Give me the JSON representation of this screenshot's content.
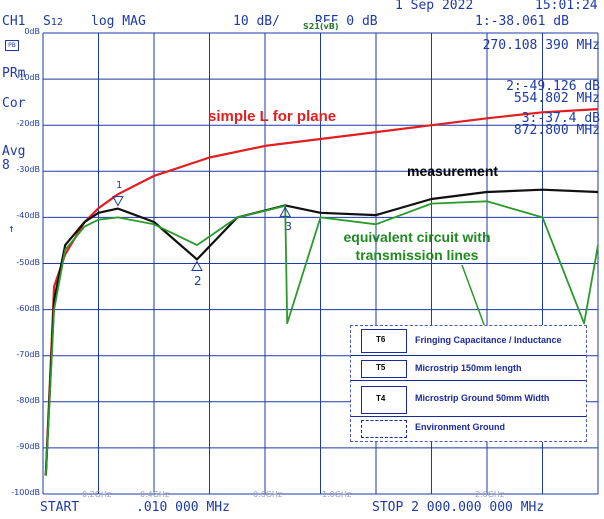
{
  "header": {
    "date": "1 Sep 2022",
    "time": "15:01:24",
    "channel": "CH1",
    "param": "S",
    "param_sub": "12",
    "format": "log MAG",
    "scale": "10 dB/",
    "ref": "REF 0 dB",
    "trace_tag": "S21(vB)",
    "marker1_readout": "1:-38.061 dB",
    "marker1_freq": "270.108 390 MHz",
    "marker2_readout": "2:-49.126 dB",
    "marker2_freq": "554.802 MHz",
    "marker3_readout": "3:-37.4 dB",
    "marker3_freq": "872.800 MHz"
  },
  "sidebar": {
    "prm": "PRm",
    "cor": "Cor",
    "avg": "Avg",
    "avg_count": "8",
    "ref_arrow": "↑",
    "box_icon": "PB"
  },
  "y_axis_labels": [
    "0dB",
    "-10dB",
    "-20dB",
    "-30dB",
    "-40dB",
    "-50dB",
    "-60dB",
    "-70dB",
    "-80dB",
    "-90dB",
    "-100dB"
  ],
  "x_axis_labels": [
    "0.2GHz",
    "0.4GHz",
    "0.6GHz",
    "1.0GHz",
    "2.0GHz"
  ],
  "footer": {
    "start": "START",
    "start_value": ".010 000 MHz",
    "stop": "STOP 2 000.000 000 MHz"
  },
  "markers": [
    "1",
    "2",
    "3"
  ],
  "annotations": {
    "simple_l": "simple L for plane",
    "measurement": "measurement",
    "equivalent": "equivalent circuit with transmission lines"
  },
  "legend": {
    "items": [
      {
        "box": "T6",
        "label": "Fringing Capacitance / Inductance"
      },
      {
        "box": "T5",
        "label": "Microstrip 150mm length"
      },
      {
        "box": "T4",
        "label": "Microstrip Ground 50mm Width"
      },
      {
        "box": "",
        "label": "Environment Ground"
      }
    ]
  },
  "colors": {
    "grid": "#1e3aa8",
    "simple_l": "#e02020",
    "measurement": "#101010",
    "equivalent": "#2a9a2a",
    "text": "#1e3aa8"
  },
  "chart_data": {
    "type": "line",
    "ylim": [
      -100,
      0
    ],
    "yscale": "10 dB/div",
    "xlim_mhz": [
      0.01,
      2000
    ],
    "series": [
      {
        "name": "simple L for plane",
        "x_mhz": [
          10,
          40,
          80,
          150,
          200,
          270,
          400,
          600,
          800,
          1000,
          1200,
          1400,
          1600,
          1800,
          2000
        ],
        "y_db": [
          -96,
          -55,
          -48,
          -41,
          -38,
          -35,
          -31,
          -27,
          -24.5,
          -23,
          -21.5,
          -20,
          -18.5,
          -17.2,
          -16.5
        ]
      },
      {
        "name": "measurement",
        "x_mhz": [
          10,
          40,
          80,
          150,
          200,
          270,
          400,
          554.8,
          700,
          872.8,
          1000,
          1200,
          1400,
          1600,
          1800,
          2000
        ],
        "y_db": [
          -96,
          -58,
          -46,
          -41,
          -39,
          -38.1,
          -41,
          -49.1,
          -40,
          -37.4,
          -39,
          -39.5,
          -36,
          -34.5,
          -34,
          -34.5
        ]
      },
      {
        "name": "equivalent circuit with transmission lines",
        "x_mhz": [
          10,
          40,
          80,
          150,
          200,
          270,
          400,
          554.8,
          700,
          872.8,
          880,
          1000,
          1200,
          1400,
          1600,
          1800,
          1950,
          2000
        ],
        "y_db": [
          -96,
          -60,
          -47,
          -42,
          -40.5,
          -40,
          -41.5,
          -46,
          -40,
          -37.5,
          -63,
          -40,
          -41.5,
          -37,
          -36.5,
          -40,
          -63,
          -46
        ]
      }
    ]
  }
}
